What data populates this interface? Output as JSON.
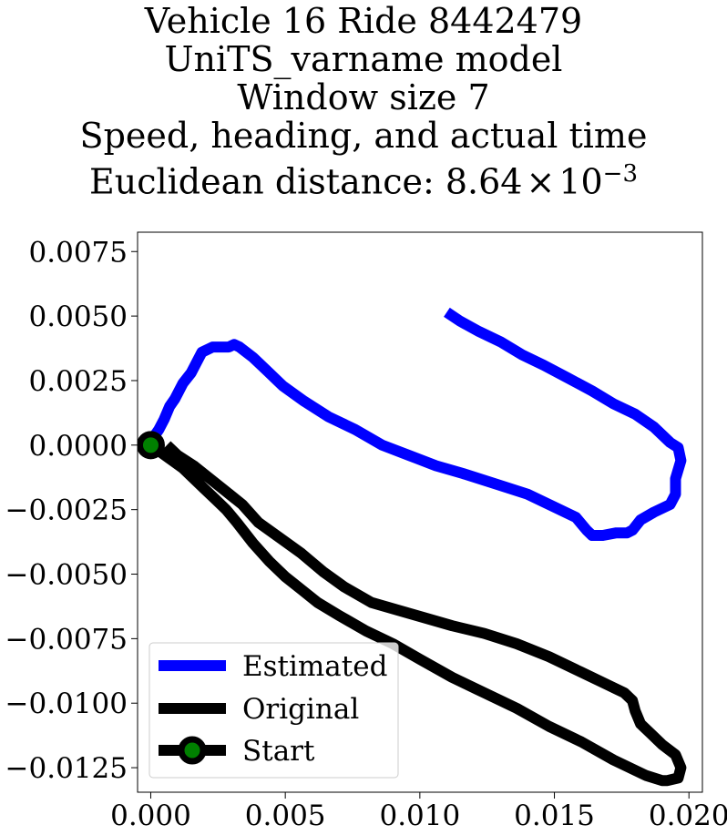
{
  "chart_data": {
    "type": "line",
    "title_lines": [
      "Vehicle 16 Ride 8442479",
      "UniTS_varname model",
      "Window size 7",
      "Speed, heading, and actual time"
    ],
    "distance_label": "Euclidean distance: ",
    "distance_mantissa": "8.64",
    "distance_times": "×",
    "distance_base": "10",
    "distance_exponent": "−3",
    "xlim": [
      -0.00049,
      0.0205
    ],
    "ylim": [
      -0.01345,
      0.00825
    ],
    "x_ticks": [
      {
        "value": 0.0,
        "label": "0.000"
      },
      {
        "value": 0.005,
        "label": "0.005"
      },
      {
        "value": 0.01,
        "label": "0.010"
      },
      {
        "value": 0.015,
        "label": "0.015"
      },
      {
        "value": 0.02,
        "label": "0.020"
      }
    ],
    "y_ticks": [
      {
        "value": 0.0075,
        "label": "0.0075"
      },
      {
        "value": 0.005,
        "label": "0.0050"
      },
      {
        "value": 0.0025,
        "label": "0.0025"
      },
      {
        "value": 0.0,
        "label": "0.0000"
      },
      {
        "value": -0.0025,
        "label": "−0.0025"
      },
      {
        "value": -0.005,
        "label": "−0.0050"
      },
      {
        "value": -0.0075,
        "label": "−0.0075"
      },
      {
        "value": -0.01,
        "label": "−0.0100"
      },
      {
        "value": -0.0125,
        "label": "−0.0125"
      }
    ],
    "grid": false,
    "legend_position": "bottom-left",
    "series": [
      {
        "name": "Estimated",
        "color": "#0000ff",
        "x": [
          0.011,
          0.0115,
          0.0122,
          0.013,
          0.0138,
          0.0146,
          0.0155,
          0.0164,
          0.0172,
          0.018,
          0.0187,
          0.019,
          0.0193,
          0.0196,
          0.0197,
          0.0195,
          0.0195,
          0.0193,
          0.0187,
          0.0182,
          0.0179,
          0.0177,
          0.0173,
          0.0168,
          0.0164,
          0.0162,
          0.0158,
          0.015,
          0.014,
          0.0128,
          0.0116,
          0.0106,
          0.0096,
          0.0086,
          0.0076,
          0.0066,
          0.0057,
          0.0049,
          0.0043,
          0.0038,
          0.0033,
          0.0031,
          0.0029,
          0.0026,
          0.0023,
          0.0019,
          0.0017,
          0.0015,
          0.0012,
          0.0009,
          0.0007,
          0.0005,
          0.0003,
          0.0001,
          0.0
        ],
        "y": [
          0.00515,
          0.0048,
          0.0044,
          0.004,
          0.0035,
          0.0031,
          0.0026,
          0.0021,
          0.0016,
          0.0012,
          0.0007,
          0.0004,
          0.0001,
          -0.0001,
          -0.0006,
          -0.0013,
          -0.0019,
          -0.0023,
          -0.0026,
          -0.0029,
          -0.0033,
          -0.0034,
          -0.0034,
          -0.0035,
          -0.0035,
          -0.0033,
          -0.0028,
          -0.0024,
          -0.0019,
          -0.0015,
          -0.0011,
          -0.0008,
          -0.0004,
          0.0,
          0.0006,
          0.0011,
          0.0017,
          0.0023,
          0.0029,
          0.0034,
          0.0038,
          0.0039,
          0.0038,
          0.0038,
          0.0038,
          0.0036,
          0.0032,
          0.0028,
          0.0024,
          0.0018,
          0.0015,
          0.001,
          0.0006,
          0.0003,
          0.0
        ]
      },
      {
        "name": "Original",
        "color": "#000000",
        "x": [
          0.0006,
          0.001,
          0.0016,
          0.0022,
          0.0028,
          0.0034,
          0.004,
          0.0048,
          0.0056,
          0.0064,
          0.0072,
          0.0082,
          0.0092,
          0.0102,
          0.0112,
          0.0124,
          0.0136,
          0.0148,
          0.016,
          0.017,
          0.0176,
          0.0179,
          0.018,
          0.0182,
          0.0186,
          0.019,
          0.0195,
          0.0197,
          0.0196,
          0.0192,
          0.019,
          0.0184,
          0.0172,
          0.016,
          0.0148,
          0.0136,
          0.0124,
          0.0112,
          0.01,
          0.009,
          0.008,
          0.007,
          0.0062,
          0.0056,
          0.005,
          0.0044,
          0.0038,
          0.0032,
          0.0028,
          0.0024,
          0.002,
          0.0016,
          0.0012,
          0.0008,
          0.0004,
          0.0
        ],
        "y": [
          0.0,
          -0.0004,
          -0.0008,
          -0.0013,
          -0.0018,
          -0.0023,
          -0.003,
          -0.0036,
          -0.0042,
          -0.0049,
          -0.0055,
          -0.0061,
          -0.0064,
          -0.0067,
          -0.007,
          -0.0073,
          -0.0077,
          -0.0082,
          -0.0088,
          -0.0093,
          -0.0096,
          -0.0099,
          -0.0103,
          -0.0108,
          -0.0112,
          -0.0116,
          -0.012,
          -0.0125,
          -0.0129,
          -0.013,
          -0.013,
          -0.0128,
          -0.0122,
          -0.0115,
          -0.0109,
          -0.0102,
          -0.0096,
          -0.009,
          -0.0083,
          -0.0077,
          -0.0072,
          -0.0066,
          -0.0061,
          -0.0056,
          -0.0051,
          -0.0045,
          -0.0038,
          -0.003,
          -0.0025,
          -0.0021,
          -0.0017,
          -0.0013,
          -0.0009,
          -0.0006,
          -0.0003,
          0.0
        ]
      }
    ],
    "start_point": {
      "name": "Start",
      "x": 0.0,
      "y": 0.0,
      "edge_color": "#000000",
      "face_color": "#008000"
    },
    "legend": [
      "Estimated",
      "Original",
      "Start"
    ]
  }
}
